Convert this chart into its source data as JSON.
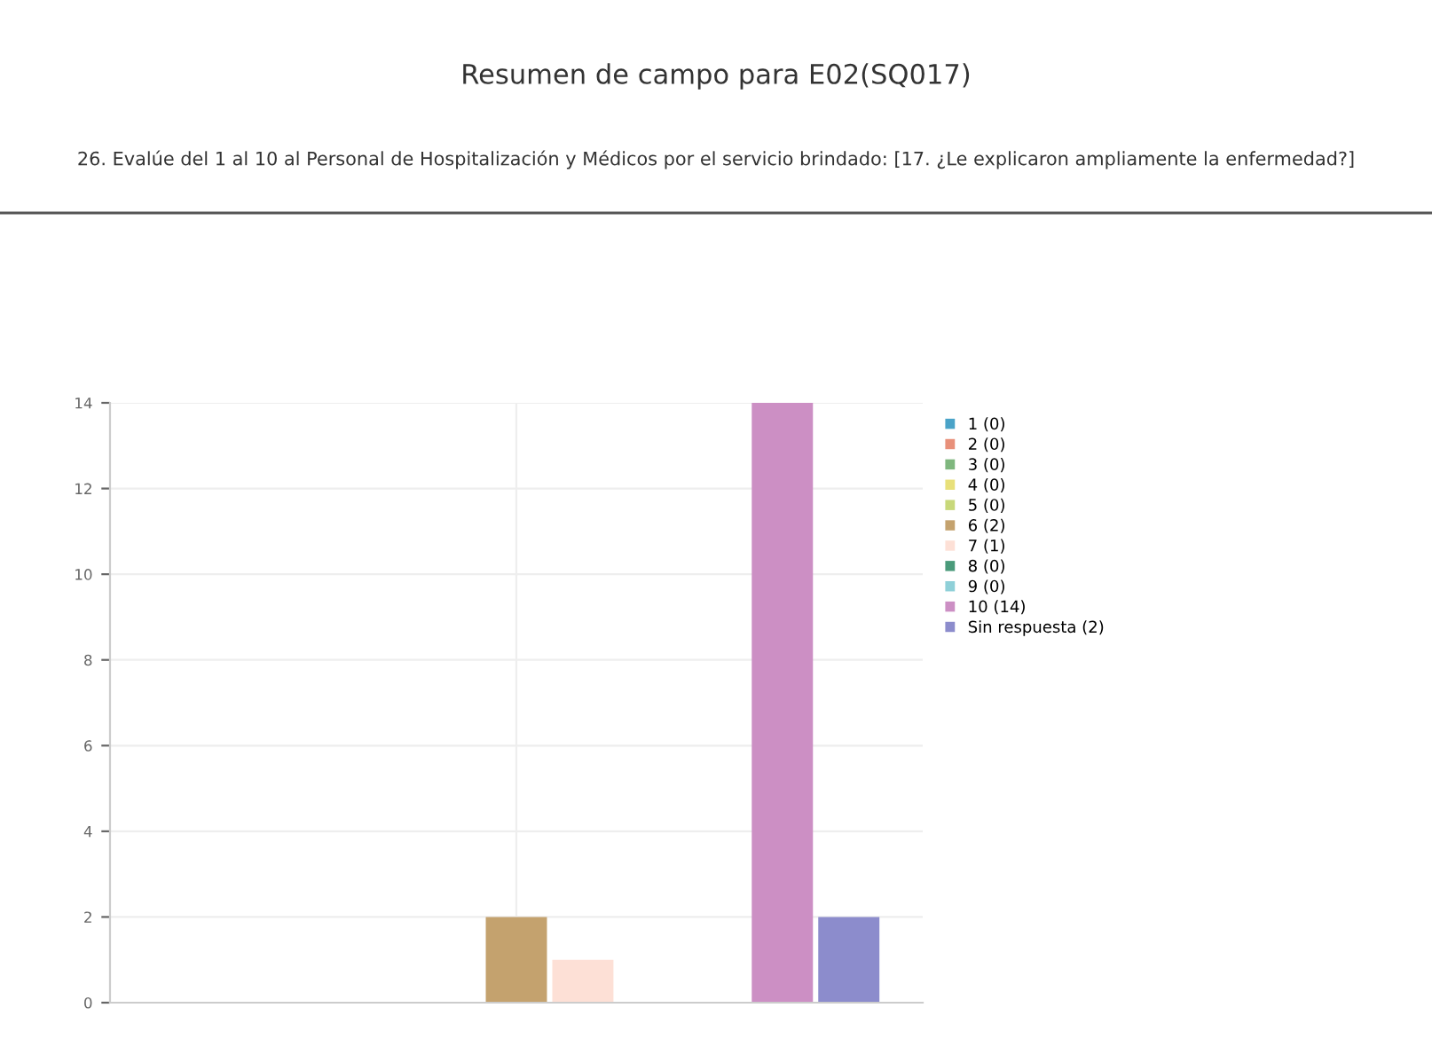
{
  "chart_data": {
    "type": "bar",
    "title": "Resumen de campo para E02(SQ017)",
    "subtitle": "26. Evalúe del 1 al 10 al Personal de Hospitalización y Médicos por el servicio brindado: [17. ¿Le explicaron ampliamente la enfermedad?]",
    "categories": [
      null
    ],
    "series": [
      {
        "name": "1 (0)",
        "color": "#4aa3c8",
        "values": [
          0
        ]
      },
      {
        "name": "2 (0)",
        "color": "#e8907a",
        "values": [
          0
        ]
      },
      {
        "name": "3 (0)",
        "color": "#7fb77e",
        "values": [
          0
        ]
      },
      {
        "name": "4 (0)",
        "color": "#e8e07a",
        "values": [
          0
        ]
      },
      {
        "name": "5 (0)",
        "color": "#c8d87a",
        "values": [
          0
        ]
      },
      {
        "name": "6 (2)",
        "color": "#c4a26e",
        "values": [
          2
        ]
      },
      {
        "name": "7 (1)",
        "color": "#fde0d6",
        "values": [
          1
        ]
      },
      {
        "name": "8 (0)",
        "color": "#4a9a7a",
        "values": [
          0
        ]
      },
      {
        "name": "9 (0)",
        "color": "#8fd0d8",
        "values": [
          0
        ]
      },
      {
        "name": "10 (14)",
        "color": "#cc8fc4",
        "values": [
          14
        ]
      },
      {
        "name": "Sin respuesta (2)",
        "color": "#8c8ccc",
        "values": [
          2
        ]
      }
    ],
    "ylim": [
      0,
      14
    ],
    "yticks": [
      0,
      2,
      4,
      6,
      8,
      10,
      12,
      14
    ],
    "grid": true,
    "legend": "top right"
  }
}
